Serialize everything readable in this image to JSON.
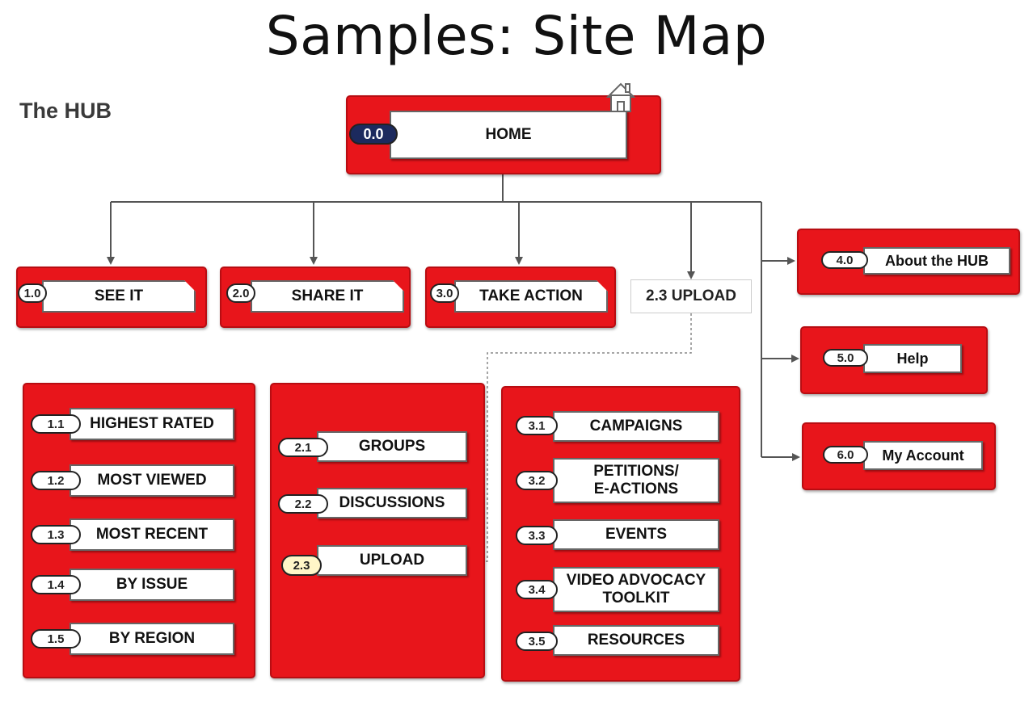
{
  "title": "Samples: Site Map",
  "subtitle": "The HUB",
  "home": {
    "num": "0.0",
    "label": "HOME"
  },
  "top_level": [
    {
      "num": "1.0",
      "label": "SEE IT"
    },
    {
      "num": "2.0",
      "label": "SHARE IT"
    },
    {
      "num": "3.0",
      "label": "TAKE ACTION"
    }
  ],
  "upload_link": {
    "label": "2.3 UPLOAD"
  },
  "right_items": [
    {
      "num": "4.0",
      "label": "About the HUB"
    },
    {
      "num": "5.0",
      "label": "Help"
    },
    {
      "num": "6.0",
      "label": "My Account"
    }
  ],
  "see_it_children": [
    {
      "num": "1.1",
      "label": "HIGHEST RATED"
    },
    {
      "num": "1.2",
      "label": "MOST VIEWED"
    },
    {
      "num": "1.3",
      "label": "MOST RECENT"
    },
    {
      "num": "1.4",
      "label": "BY ISSUE"
    },
    {
      "num": "1.5",
      "label": "BY REGION"
    }
  ],
  "share_it_children": [
    {
      "num": "2.1",
      "label": "GROUPS"
    },
    {
      "num": "2.2",
      "label": "DISCUSSIONS"
    },
    {
      "num": "2.3",
      "label": "UPLOAD"
    }
  ],
  "take_action_children": [
    {
      "num": "3.1",
      "label": "CAMPAIGNS"
    },
    {
      "num": "3.2",
      "label": "PETITIONS/\nE-ACTIONS"
    },
    {
      "num": "3.3",
      "label": "EVENTS"
    },
    {
      "num": "3.4",
      "label": "VIDEO ADVOCACY\nTOOLKIT"
    },
    {
      "num": "3.5",
      "label": "RESOURCES"
    }
  ],
  "colors": {
    "box_red": "#e8151b",
    "connector": "#555555",
    "highlight_pill": "#fff6c8",
    "home_pill": "#1c2a5e"
  }
}
